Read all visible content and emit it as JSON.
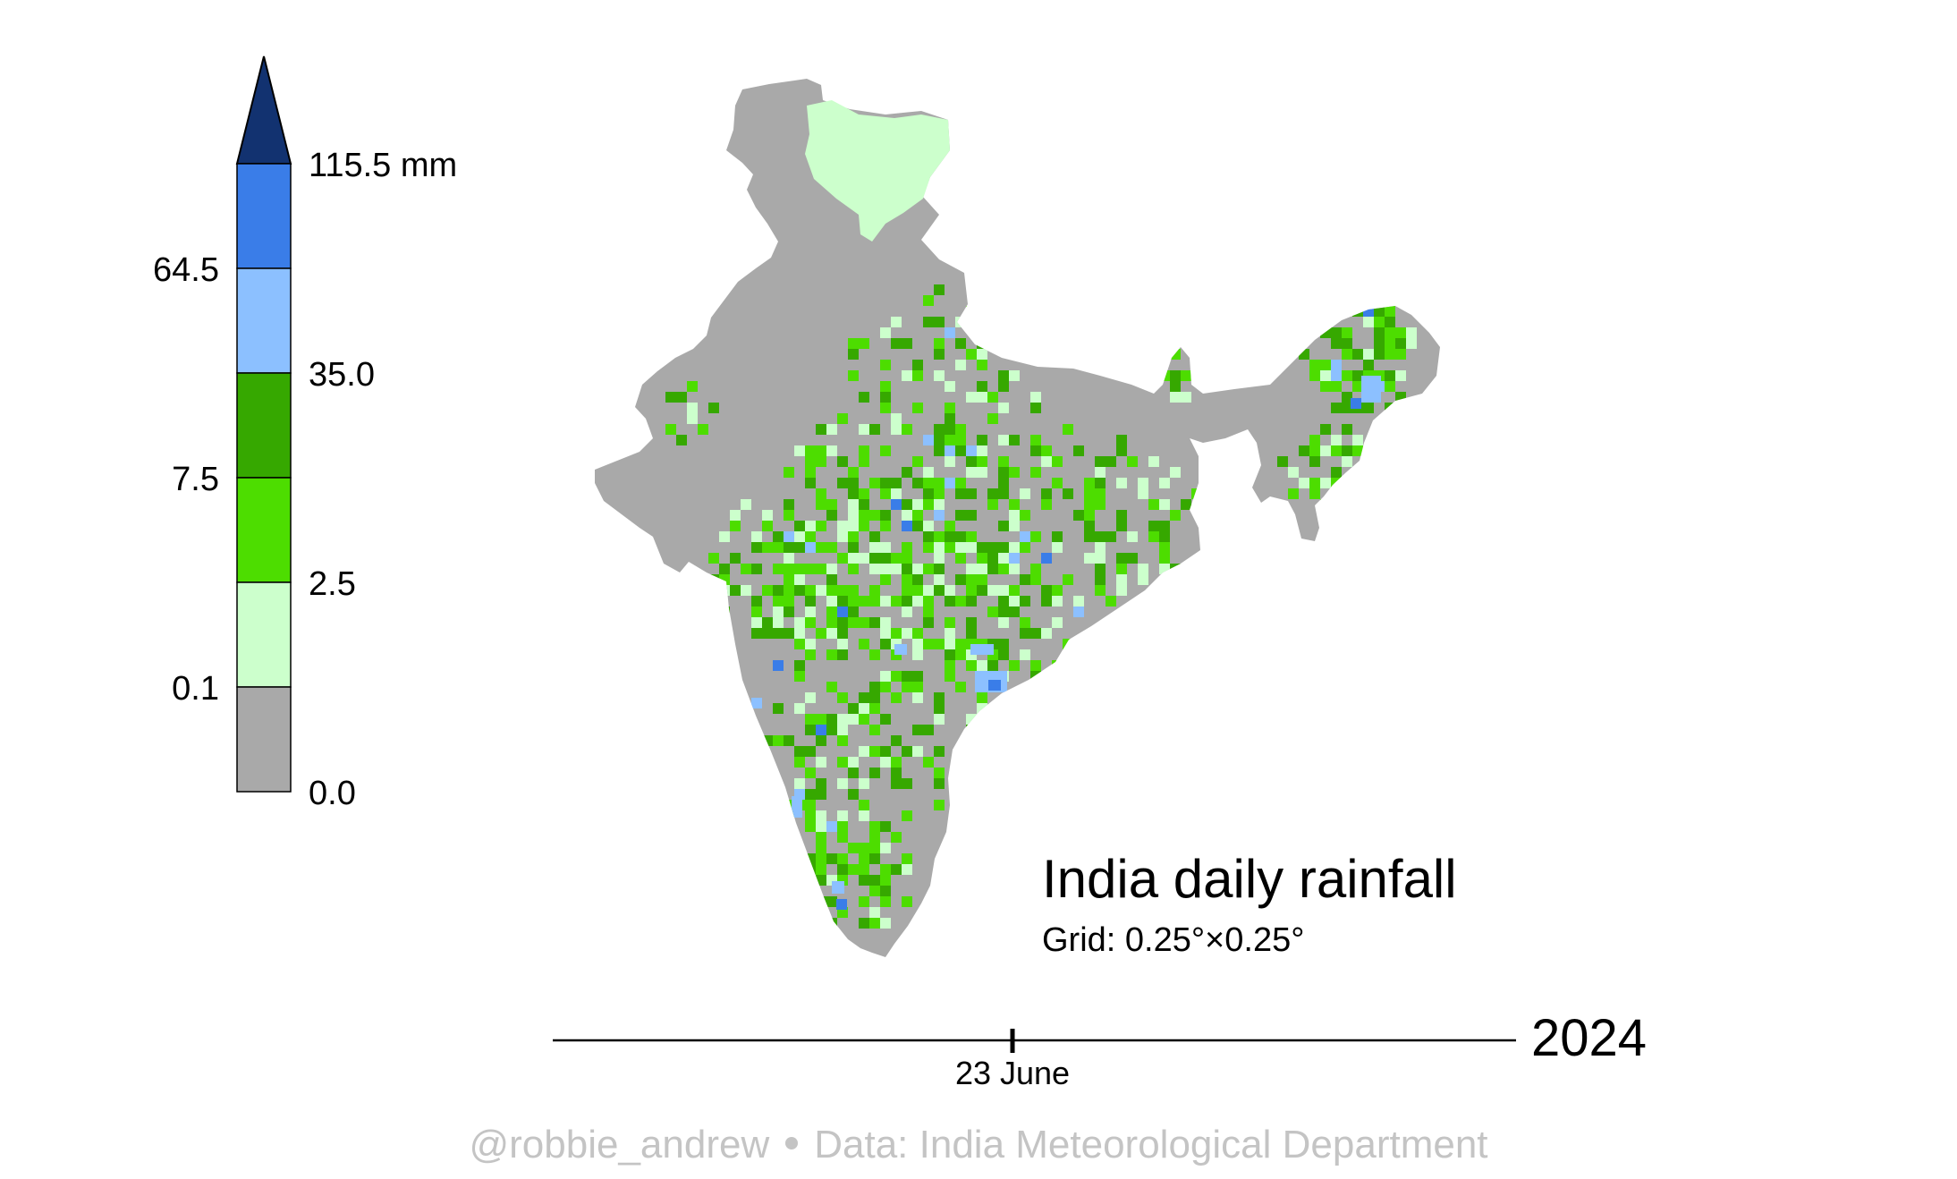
{
  "title": "India daily rainfall",
  "subtitle": "Grid: 0.25°×0.25°",
  "legend": {
    "unit_label": "115.5 mm",
    "labels_left": [
      "64.5",
      "7.5",
      "0.1"
    ],
    "labels_right": [
      "115.5 mm",
      "35.0",
      "2.5",
      "0.0"
    ],
    "bins": [
      {
        "range": "0.0–0.1",
        "color": "#a9a9a9"
      },
      {
        "range": "0.1–2.5",
        "color": "#ccffcc"
      },
      {
        "range": "2.5–7.5",
        "color": "#4ddd00"
      },
      {
        "range": "7.5–35.0",
        "color": "#36a800"
      },
      {
        "range": "35.0–64.5",
        "color": "#8cc0ff"
      },
      {
        "range": "64.5–115.5",
        "color": "#3a7de8"
      },
      {
        "range": ">115.5",
        "color": "#123270"
      }
    ]
  },
  "timeline": {
    "date_label": "23 June",
    "year": "2024"
  },
  "credit": {
    "handle": "@robbie_andrew",
    "source": "Data: India Meteorological Department"
  }
}
